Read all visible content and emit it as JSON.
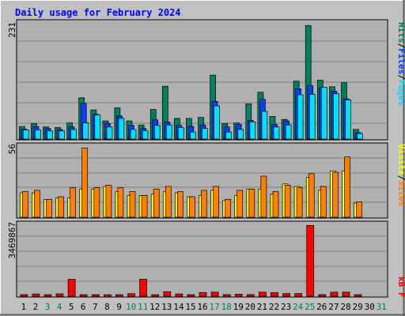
{
  "title": "Daily usage for February 2024",
  "colors": {
    "background": "#c0c0c0",
    "panel": "#b0b0b0",
    "grid": "#808080",
    "title": "#0000ff",
    "hits": "#00805c",
    "files": "#0040ff",
    "pages": "#00e0ff",
    "visits": "#ffff00",
    "sites": "#ff8000",
    "kbytes": "#ff0000",
    "weekday": "#000000",
    "weekend": "#00805c"
  },
  "legends": {
    "top": {
      "pages": "Pages",
      "files": "Files",
      "hits": "Hits",
      "sep": "/"
    },
    "middle": {
      "sites": "Sites",
      "visits": "Visits",
      "sep": "/"
    },
    "bottom": {
      "kbytes": "kB F"
    }
  },
  "axis_max_labels": {
    "top": "231",
    "middle": "56",
    "bottom": "3469867"
  },
  "chart_data": [
    {
      "type": "bar",
      "panel": "top",
      "categories": [
        "1",
        "2",
        "3",
        "4",
        "5",
        "6",
        "7",
        "8",
        "9",
        "10",
        "11",
        "12",
        "13",
        "14",
        "15",
        "16",
        "17",
        "18",
        "19",
        "20",
        "21",
        "22",
        "23",
        "24",
        "25",
        "26",
        "27",
        "28",
        "29",
        "30",
        "31"
      ],
      "weekend_days": [
        3,
        4,
        10,
        11,
        17,
        18,
        24,
        25,
        31
      ],
      "ylim": [
        0,
        231
      ],
      "series": [
        {
          "name": "Hits",
          "values": [
            25,
            31,
            24,
            23,
            32,
            82,
            58,
            36,
            62,
            36,
            28,
            59,
            105,
            41,
            41,
            43,
            127,
            31,
            32,
            70,
            93,
            45,
            39,
            115,
            226,
            117,
            104,
            112,
            19,
            0,
            0
          ]
        },
        {
          "name": "Files",
          "values": [
            20,
            25,
            21,
            19,
            24,
            71,
            49,
            31,
            46,
            27,
            21,
            38,
            34,
            27,
            25,
            28,
            75,
            24,
            29,
            37,
            79,
            29,
            36,
            100,
            106,
            102,
            95,
            80,
            13,
            0,
            0
          ]
        },
        {
          "name": "Pages",
          "values": [
            18,
            18,
            16,
            16,
            19,
            32,
            48,
            24,
            41,
            19,
            17,
            27,
            28,
            23,
            14,
            21,
            66,
            14,
            19,
            34,
            55,
            24,
            28,
            88,
            89,
            103,
            90,
            78,
            11,
            0,
            0
          ]
        }
      ]
    },
    {
      "type": "bar",
      "panel": "middle",
      "categories": [
        "1",
        "2",
        "3",
        "4",
        "5",
        "6",
        "7",
        "8",
        "9",
        "10",
        "11",
        "12",
        "13",
        "14",
        "15",
        "16",
        "17",
        "18",
        "19",
        "20",
        "21",
        "22",
        "23",
        "24",
        "25",
        "26",
        "27",
        "28",
        "29",
        "30",
        "31"
      ],
      "ylim": [
        0,
        56
      ],
      "series": [
        {
          "name": "Visits",
          "values": [
            19,
            19,
            14,
            15,
            15,
            22,
            22,
            24,
            20,
            17,
            17,
            18,
            20,
            19,
            16,
            17,
            21,
            13,
            17,
            22,
            22,
            18,
            26,
            24,
            31,
            21,
            36,
            36,
            11,
            0,
            0
          ]
        },
        {
          "name": "Sites",
          "values": [
            20,
            21,
            14,
            16,
            23,
            54,
            23,
            25,
            23,
            20,
            17,
            22,
            24,
            20,
            16,
            21,
            24,
            14,
            21,
            22,
            32,
            20,
            25,
            23,
            34,
            24,
            35,
            47,
            12,
            0,
            0
          ]
        }
      ]
    },
    {
      "type": "bar",
      "panel": "bottom",
      "categories": [
        "1",
        "2",
        "3",
        "4",
        "5",
        "6",
        "7",
        "8",
        "9",
        "10",
        "11",
        "12",
        "13",
        "14",
        "15",
        "16",
        "17",
        "18",
        "19",
        "20",
        "21",
        "22",
        "23",
        "24",
        "25",
        "26",
        "27",
        "28",
        "29",
        "30",
        "31"
      ],
      "ylim": [
        0,
        3469867
      ],
      "series": [
        {
          "name": "kB F",
          "values": [
            35000,
            110000,
            30000,
            120000,
            820000,
            45000,
            40000,
            40000,
            40000,
            125000,
            820000,
            60000,
            220000,
            110000,
            60000,
            180000,
            200000,
            80000,
            100000,
            80000,
            200000,
            180000,
            130000,
            130000,
            3420000,
            60000,
            200000,
            200000,
            30000,
            0,
            0
          ]
        }
      ]
    }
  ]
}
